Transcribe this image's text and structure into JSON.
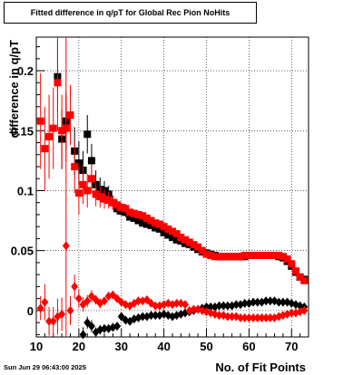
{
  "chart_data": {
    "type": "scatter",
    "title": "Fitted difference in q/pT for Global Rec Pion NoHits",
    "xlabel": "No. of Fit Points",
    "ylabel": "difference in q/pT",
    "xlim": [
      10,
      74
    ],
    "ylim": [
      -0.022,
      0.228
    ],
    "xticks": [
      "10",
      "20",
      "30",
      "40",
      "50",
      "60",
      "70"
    ],
    "yticks": [
      "0",
      "0.05",
      "0.1",
      "0.15",
      "0.2"
    ],
    "grid": true,
    "series": [
      {
        "marker": "square",
        "color": "#000000",
        "x": [
          15,
          16,
          17,
          18,
          19,
          20,
          21,
          22,
          23,
          24,
          25,
          26,
          27,
          28,
          29,
          30,
          31,
          32,
          33,
          34,
          35,
          36,
          37,
          38,
          39,
          40,
          41,
          42,
          43,
          44,
          45,
          46,
          47,
          48,
          49,
          50,
          51,
          52,
          53,
          54,
          55,
          56,
          57,
          58,
          59,
          60,
          61,
          62,
          63,
          64,
          65,
          66,
          67,
          68,
          69,
          70,
          71,
          72,
          73
        ],
        "y": [
          0.195,
          0.143,
          0.158,
          0.163,
          0.133,
          0.123,
          0.117,
          0.147,
          0.125,
          0.105,
          0.101,
          0.1,
          0.097,
          0.09,
          0.085,
          0.083,
          0.082,
          0.078,
          0.077,
          0.075,
          0.073,
          0.072,
          0.071,
          0.069,
          0.068,
          0.065,
          0.063,
          0.061,
          0.059,
          0.058,
          0.056,
          0.055,
          0.053,
          0.051,
          0.049,
          0.048,
          0.047,
          0.046,
          0.045,
          0.045,
          0.045,
          0.045,
          0.045,
          0.045,
          0.045,
          0.046,
          0.046,
          0.046,
          0.046,
          0.046,
          0.046,
          0.046,
          0.045,
          0.044,
          0.041,
          0.037,
          0.032,
          0.028,
          0.026
        ],
        "yerr": [
          0.03,
          0.025,
          0.024,
          0.022,
          0.02,
          0.018,
          0.016,
          0.016,
          0.014,
          0.012,
          0.01,
          0.008,
          0.007,
          0.006,
          0.005,
          0.004,
          0.004,
          0.003,
          0.003,
          0.003,
          0.003,
          0.003,
          0.002,
          0.002,
          0.002,
          0.002,
          0.002,
          0.002,
          0.002,
          0.002,
          0.002,
          0.002,
          0.002,
          0.002,
          0.002,
          0.002,
          0.002,
          0.002,
          0.002,
          0.002,
          0.002,
          0.002,
          0.002,
          0.002,
          0.002,
          0.002,
          0.002,
          0.002,
          0.002,
          0.002,
          0.002,
          0.002,
          0.002,
          0.002,
          0.002,
          0.002,
          0.002,
          0.002,
          0.002
        ]
      },
      {
        "marker": "square",
        "color": "#ff0000",
        "x": [
          11,
          12,
          13,
          14,
          15,
          16,
          17,
          18,
          19,
          20,
          21,
          22,
          23,
          24,
          25,
          26,
          27,
          28,
          29,
          30,
          31,
          32,
          33,
          34,
          35,
          36,
          37,
          38,
          39,
          40,
          41,
          42,
          43,
          44,
          45,
          46,
          47,
          48,
          49,
          50,
          51,
          52,
          53,
          54,
          55,
          56,
          57,
          58,
          59,
          60,
          61,
          62,
          63,
          64,
          65,
          66,
          67,
          68,
          69,
          70,
          71,
          72,
          73
        ],
        "y": [
          0.158,
          0.135,
          0.145,
          0.152,
          0.19,
          0.15,
          0.152,
          0.163,
          0.12,
          0.098,
          0.105,
          0.1,
          0.11,
          0.097,
          0.095,
          0.093,
          0.092,
          0.09,
          0.088,
          0.086,
          0.085,
          0.082,
          0.081,
          0.08,
          0.079,
          0.077,
          0.075,
          0.073,
          0.072,
          0.07,
          0.068,
          0.066,
          0.064,
          0.061,
          0.059,
          0.057,
          0.055,
          0.053,
          0.05,
          0.047,
          0.046,
          0.045,
          0.045,
          0.045,
          0.045,
          0.045,
          0.045,
          0.045,
          0.046,
          0.046,
          0.046,
          0.046,
          0.046,
          0.046,
          0.046,
          0.046,
          0.046,
          0.045,
          0.043,
          0.039,
          0.033,
          0.028,
          0.025
        ],
        "yerr": [
          0.04,
          0.035,
          0.035,
          0.034,
          0.04,
          0.03,
          0.028,
          0.025,
          0.022,
          0.018,
          0.016,
          0.014,
          0.012,
          0.01,
          0.009,
          0.008,
          0.007,
          0.006,
          0.005,
          0.004,
          0.004,
          0.003,
          0.003,
          0.003,
          0.003,
          0.003,
          0.002,
          0.002,
          0.002,
          0.002,
          0.002,
          0.002,
          0.002,
          0.002,
          0.002,
          0.002,
          0.002,
          0.002,
          0.002,
          0.002,
          0.002,
          0.002,
          0.002,
          0.002,
          0.002,
          0.002,
          0.002,
          0.002,
          0.002,
          0.002,
          0.002,
          0.002,
          0.002,
          0.002,
          0.002,
          0.002,
          0.002,
          0.002,
          0.002,
          0.002,
          0.002,
          0.002,
          0.002
        ]
      },
      {
        "marker": "diamond",
        "color": "#000000",
        "x": [
          21,
          22,
          23,
          24,
          25,
          26,
          27,
          28,
          29,
          30,
          31,
          32,
          33,
          34,
          35,
          36,
          37,
          38,
          39,
          40,
          41,
          42,
          43,
          44,
          45,
          46,
          47,
          48,
          49,
          50,
          51,
          52,
          53,
          54,
          55,
          56,
          57,
          58,
          59,
          60,
          61,
          62,
          63,
          64,
          65,
          66,
          67,
          68,
          69,
          70,
          71,
          72,
          73
        ],
        "y": [
          -0.02,
          -0.01,
          -0.013,
          -0.018,
          -0.016,
          -0.015,
          -0.015,
          -0.014,
          -0.013,
          -0.005,
          -0.008,
          -0.009,
          -0.007,
          -0.006,
          -0.005,
          -0.005,
          -0.004,
          -0.004,
          -0.004,
          -0.003,
          -0.004,
          -0.005,
          -0.004,
          -0.003,
          -0.002,
          -0.001,
          0.0,
          0.001,
          0.002,
          0.003,
          0.003,
          0.003,
          0.004,
          0.004,
          0.004,
          0.004,
          0.005,
          0.005,
          0.006,
          0.006,
          0.007,
          0.007,
          0.007,
          0.008,
          0.008,
          0.008,
          0.007,
          0.007,
          0.007,
          0.006,
          0.005,
          0.004,
          0.003
        ],
        "yerr": [
          0.006,
          0.005,
          0.005,
          0.004,
          0.004,
          0.003,
          0.003,
          0.003,
          0.003,
          0.002,
          0.002,
          0.002,
          0.002,
          0.002,
          0.002,
          0.002,
          0.002,
          0.002,
          0.001,
          0.001,
          0.001,
          0.001,
          0.001,
          0.001,
          0.001,
          0.001,
          0.001,
          0.001,
          0.001,
          0.001,
          0.001,
          0.001,
          0.001,
          0.001,
          0.001,
          0.001,
          0.001,
          0.001,
          0.001,
          0.001,
          0.001,
          0.001,
          0.001,
          0.001,
          0.001,
          0.001,
          0.001,
          0.001,
          0.001,
          0.001,
          0.001,
          0.001,
          0.001
        ]
      },
      {
        "marker": "diamond",
        "color": "#ff0000",
        "x": [
          11,
          12,
          13,
          14,
          15,
          16,
          17,
          18,
          19,
          20,
          21,
          22,
          23,
          24,
          25,
          26,
          27,
          28,
          29,
          30,
          31,
          32,
          33,
          34,
          35,
          36,
          37,
          38,
          39,
          40,
          41,
          42,
          43,
          44,
          45,
          46,
          47,
          48,
          49,
          50,
          51,
          52,
          53,
          54,
          55,
          56,
          57,
          58,
          59,
          60,
          61,
          62,
          63,
          64,
          65,
          66,
          67,
          68,
          69,
          70,
          71,
          72,
          73
        ],
        "y": [
          0.002,
          0.007,
          -0.009,
          -0.009,
          -0.005,
          -0.003,
          0.054,
          0.0,
          0.02,
          0.01,
          0.005,
          0.008,
          0.012,
          0.009,
          0.006,
          0.008,
          0.012,
          0.013,
          0.01,
          0.007,
          0.005,
          0.004,
          0.006,
          0.008,
          0.008,
          0.009,
          0.006,
          0.004,
          0.004,
          0.005,
          0.006,
          0.005,
          0.006,
          0.006,
          0.005,
          0.0,
          0.001,
          0.001,
          0.0,
          -0.001,
          -0.002,
          -0.003,
          -0.004,
          -0.004,
          -0.005,
          -0.005,
          -0.005,
          -0.006,
          -0.006,
          -0.006,
          -0.006,
          -0.006,
          -0.006,
          -0.006,
          -0.006,
          -0.006,
          -0.005,
          -0.004,
          -0.003,
          -0.002,
          -0.002,
          -0.001,
          0.0
        ],
        "yerr": [
          0.01,
          0.015,
          0.012,
          0.012,
          0.015,
          0.014,
          0.2,
          0.012,
          0.01,
          0.008,
          0.006,
          0.005,
          0.005,
          0.004,
          0.004,
          0.003,
          0.003,
          0.003,
          0.003,
          0.002,
          0.002,
          0.002,
          0.002,
          0.002,
          0.002,
          0.002,
          0.002,
          0.002,
          0.002,
          0.002,
          0.002,
          0.001,
          0.001,
          0.001,
          0.001,
          0.001,
          0.001,
          0.001,
          0.001,
          0.001,
          0.001,
          0.001,
          0.001,
          0.001,
          0.001,
          0.001,
          0.001,
          0.001,
          0.001,
          0.001,
          0.001,
          0.001,
          0.001,
          0.001,
          0.001,
          0.001,
          0.001,
          0.001,
          0.001,
          0.001,
          0.001,
          0.001,
          0.001
        ]
      }
    ]
  },
  "footer": {
    "datestamp": "Sun Jun 29 06:43:00 2025"
  }
}
